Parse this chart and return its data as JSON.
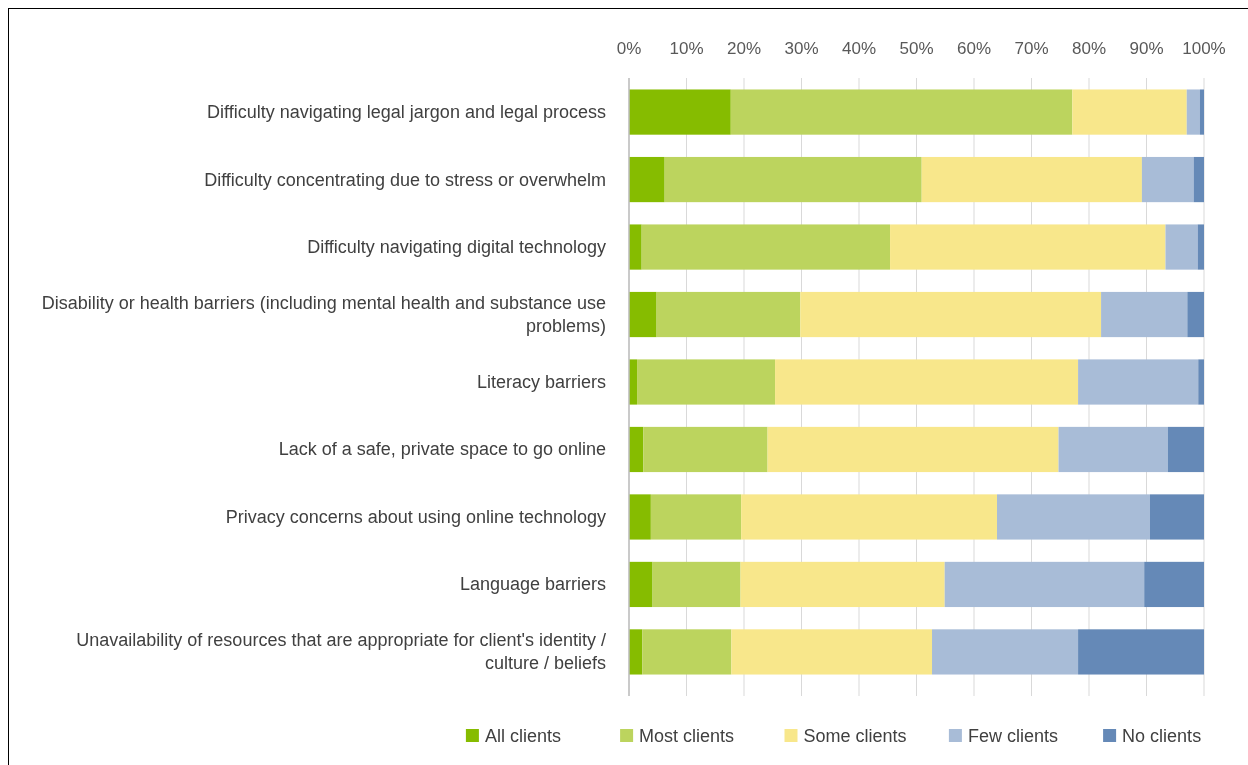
{
  "chart_data": {
    "type": "bar",
    "orientation": "horizontal",
    "stacked": true,
    "categories": [
      "Difficulty navigating legal jargon and legal process",
      "Difficulty concentrating due to stress or overwhelm",
      "Difficulty navigating digital technology",
      "Disability or health barriers (including mental health and substance use problems)",
      "Literacy barriers",
      "Lack of a safe, private space to go online",
      "Privacy concerns about using online technology",
      "Language barriers",
      "Unavailability of resources that are appropriate for client's identity / culture / beliefs"
    ],
    "series": [
      {
        "name": "All clients",
        "color": "#86bc00",
        "values": [
          17.7,
          6.2,
          2.2,
          4.8,
          1.4,
          2.5,
          3.8,
          4.1,
          2.3
        ]
      },
      {
        "name": "Most clients",
        "color": "#bcd45e",
        "values": [
          59.4,
          44.7,
          43.2,
          25.0,
          24.0,
          21.6,
          15.7,
          15.3,
          15.5
        ]
      },
      {
        "name": "Some clients",
        "color": "#f8e78b",
        "values": [
          19.9,
          38.3,
          47.9,
          52.3,
          52.7,
          50.6,
          44.5,
          35.5,
          34.9
        ]
      },
      {
        "name": "Few clients",
        "color": "#a8bcd7",
        "values": [
          2.3,
          9.0,
          5.6,
          15.0,
          20.9,
          19.0,
          26.6,
          34.7,
          25.4
        ]
      },
      {
        "name": "No clients",
        "color": "#6589b7",
        "values": [
          0.7,
          1.8,
          1.1,
          2.9,
          1.0,
          6.3,
          9.4,
          10.4,
          21.9
        ]
      }
    ],
    "xlim": [
      0,
      100
    ],
    "xticks": [
      {
        "value": 0,
        "label": "0%"
      },
      {
        "value": 10,
        "label": "10%"
      },
      {
        "value": 20,
        "label": "20%"
      },
      {
        "value": 30,
        "label": "30%"
      },
      {
        "value": 40,
        "label": "40%"
      },
      {
        "value": 50,
        "label": "50%"
      },
      {
        "value": 60,
        "label": "60%"
      },
      {
        "value": 70,
        "label": "70%"
      },
      {
        "value": 80,
        "label": "80%"
      },
      {
        "value": 90,
        "label": "90%"
      },
      {
        "value": 100,
        "label": "100%"
      }
    ],
    "grid": "x",
    "legend": "bottom"
  }
}
